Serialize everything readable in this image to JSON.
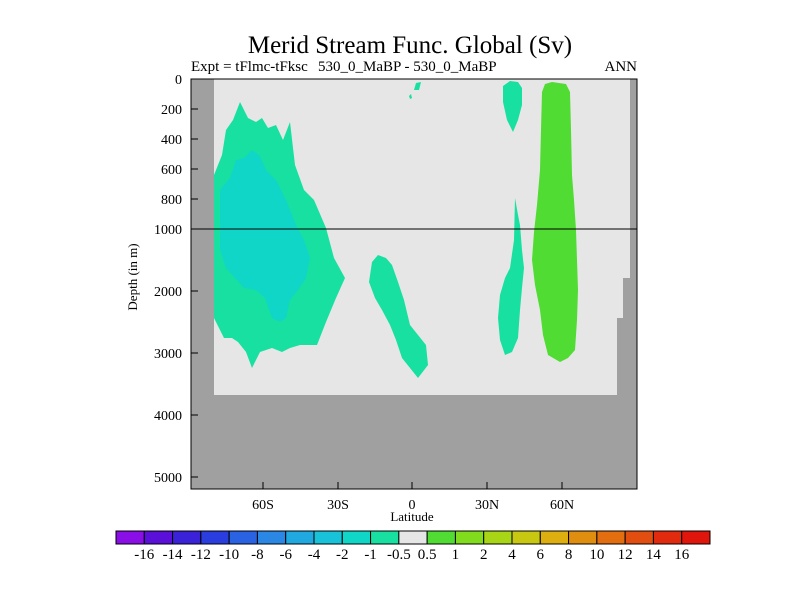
{
  "chart_data": {
    "type": "contour",
    "title": "Merid Stream Func. Global (Sv)",
    "subtitle_left": "Expt = tFlmc-tFksc",
    "subtitle_center": "530_0_MaBP - 530_0_MaBP",
    "subtitle_right": "ANN",
    "xlabel": "Latitude",
    "ylabel": "Depth (in m)",
    "x_ticks": [
      "60S",
      "30S",
      "0",
      "30N",
      "60N"
    ],
    "x_tick_values": [
      -60,
      -30,
      0,
      30,
      60
    ],
    "xlim": [
      -90,
      90
    ],
    "y_ticks_upper": [
      "0",
      "200",
      "400",
      "600",
      "800",
      "1000"
    ],
    "y_ticks_upper_values": [
      0,
      200,
      400,
      600,
      800,
      1000
    ],
    "y_ticks_lower": [
      "2000",
      "3000",
      "4000",
      "5000"
    ],
    "y_ticks_lower_values": [
      2000,
      3000,
      4000,
      5000
    ],
    "y_axis_note": "split axis: 0-1000 m stretched, 1000-5000+ m compressed",
    "reference_line_depth": 1000,
    "ocean_floor_depth": 3700,
    "colorbar": {
      "labels": [
        "-16",
        "-14",
        "-12",
        "-10",
        "-8",
        "-6",
        "-4",
        "-2",
        "-1",
        "-0.5",
        "0.5",
        "1",
        "2",
        "4",
        "6",
        "8",
        "10",
        "12",
        "14",
        "16"
      ],
      "colors": [
        "#8a0ee6",
        "#5a10d8",
        "#3a22d8",
        "#2a3ee0",
        "#2a62e4",
        "#2a88e4",
        "#20a8e0",
        "#18c2d8",
        "#10d6c8",
        "#18e0a0",
        "#e6e6e6",
        "#50dc32",
        "#82dc1e",
        "#a8d616",
        "#c8c812",
        "#dcae10",
        "#e08e10",
        "#e26e10",
        "#e24e10",
        "#e22a0e",
        "#e0160c"
      ]
    },
    "regions": [
      {
        "name": "southern-cell-outer",
        "level": "-1 to -0.5",
        "color": "#18e0a0"
      },
      {
        "name": "southern-cell-core",
        "level": "-2 to -1",
        "color": "#10d6c8"
      },
      {
        "name": "equatorial-deep-cell",
        "level": "-1 to -0.5",
        "color": "#18e0a0"
      },
      {
        "name": "equator-surface-patch",
        "level": "-1 to -0.5",
        "color": "#18e0a0"
      },
      {
        "name": "north-surface-patch",
        "level": "-1 to -0.5",
        "color": "#18e0a0"
      },
      {
        "name": "north-deep-cell",
        "level": "-1 to -0.5",
        "color": "#18e0a0"
      },
      {
        "name": "north-positive-cell",
        "level": "0.5 to 1",
        "color": "#50dc32"
      }
    ]
  }
}
